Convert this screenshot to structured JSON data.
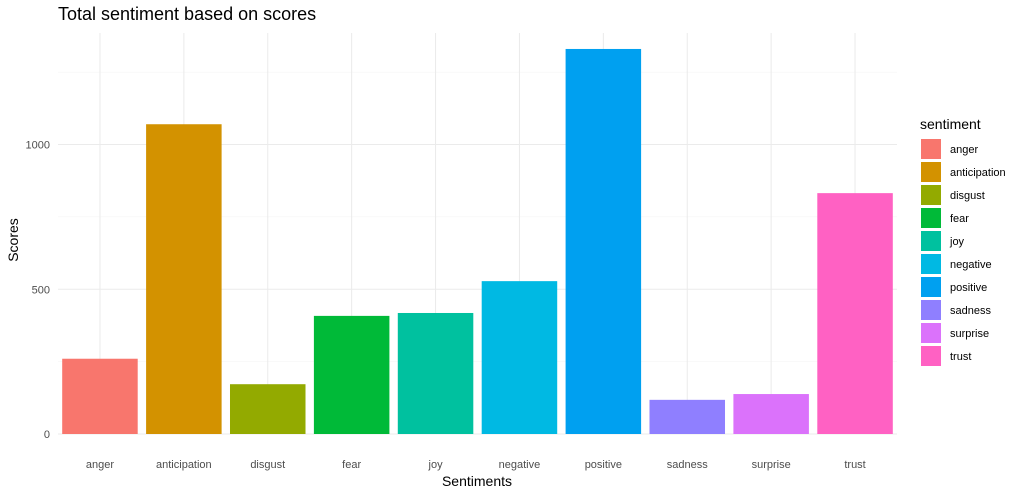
{
  "chart_data": {
    "type": "bar",
    "title": "Total sentiment based on scores",
    "xlabel": "Sentiments",
    "ylabel": "Scores",
    "categories": [
      "anger",
      "anticipation",
      "disgust",
      "fear",
      "joy",
      "negative",
      "positive",
      "sadness",
      "surprise",
      "trust"
    ],
    "values": [
      260,
      1070,
      172,
      408,
      418,
      528,
      1330,
      118,
      138,
      832
    ],
    "colors": [
      "#F8766D",
      "#D39200",
      "#93AA00",
      "#00BA38",
      "#00C19F",
      "#00B9E3",
      "#00A0F0",
      "#8F7FFF",
      "#DB72FB",
      "#FF61C3"
    ],
    "ylim": [
      0,
      1400
    ],
    "yticks": [
      0,
      500,
      1000
    ],
    "grid": true,
    "legend": {
      "title": "sentiment",
      "position": "right",
      "entries": [
        "anger",
        "anticipation",
        "disgust",
        "fear",
        "joy",
        "negative",
        "positive",
        "sadness",
        "surprise",
        "trust"
      ]
    }
  }
}
